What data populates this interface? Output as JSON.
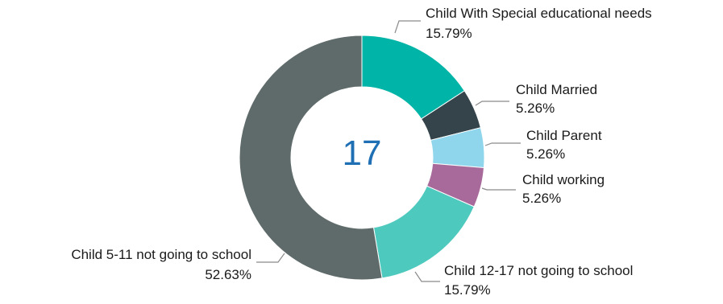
{
  "chart_data": {
    "type": "pie",
    "donut": true,
    "center_label": "17",
    "slices": [
      {
        "label": "Child With Special educational needs",
        "percent_label": "15.79%",
        "value": 15.79,
        "color": "#00b5a7"
      },
      {
        "label": "Child Married",
        "percent_label": "5.26%",
        "value": 5.26,
        "color": "#34444a"
      },
      {
        "label": "Child Parent",
        "percent_label": "5.26%",
        "value": 5.26,
        "color": "#8fd6ec"
      },
      {
        "label": "Child working",
        "percent_label": "5.26%",
        "value": 5.26,
        "color": "#a86a9a"
      },
      {
        "label": "Child 12-17 not going to school",
        "percent_label": "15.79%",
        "value": 15.79,
        "color": "#4ec9be"
      },
      {
        "label": "Child 5-11 not going to school",
        "percent_label": "52.63%",
        "value": 52.63,
        "color": "#5f6b6a"
      }
    ]
  }
}
